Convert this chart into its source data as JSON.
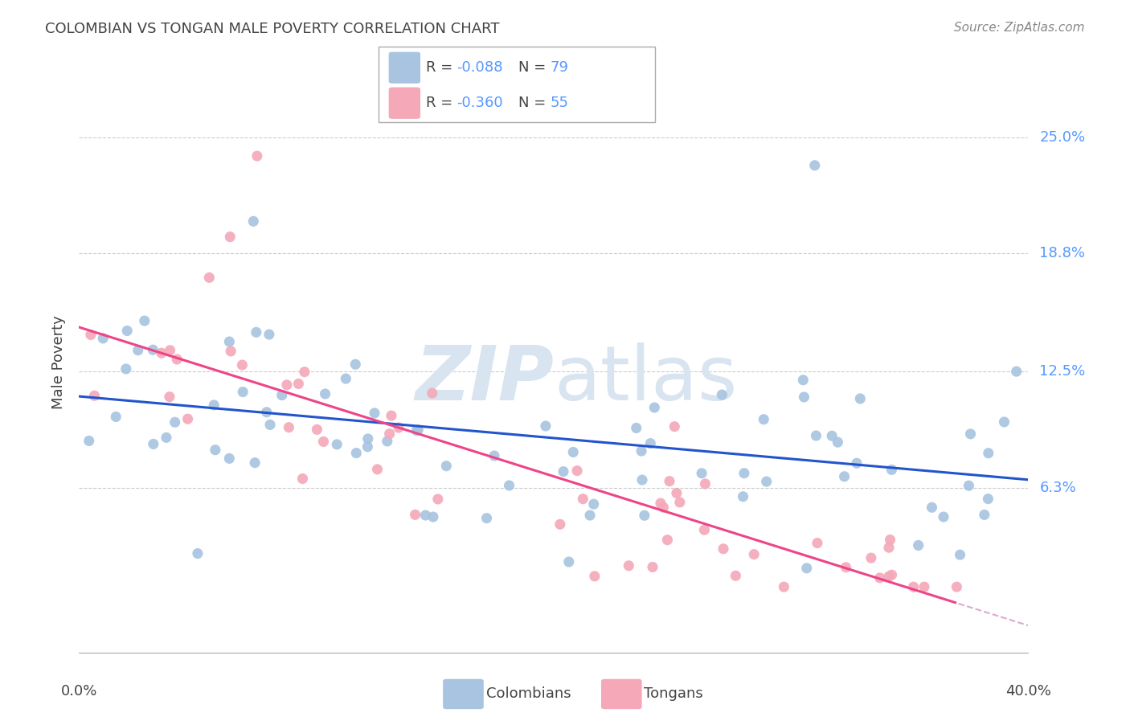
{
  "title": "COLOMBIAN VS TONGAN MALE POVERTY CORRELATION CHART",
  "source": "Source: ZipAtlas.com",
  "ylabel": "Male Poverty",
  "ytick_values": [
    0.063,
    0.125,
    0.188,
    0.25
  ],
  "ytick_labels": [
    "6.3%",
    "12.5%",
    "18.8%",
    "25.0%"
  ],
  "xlim": [
    0.0,
    0.4
  ],
  "ylim": [
    -0.025,
    0.285
  ],
  "legend_r1": "R = ",
  "legend_r1_val": "-0.088",
  "legend_n1": "N = ",
  "legend_n1_val": "79",
  "legend_r2": "R = ",
  "legend_r2_val": "-0.360",
  "legend_n2": "N = ",
  "legend_n2_val": "55",
  "colombian_color": "#a8c4e0",
  "tongan_color": "#f4a8b8",
  "colombian_line_color": "#2255cc",
  "tongan_line_color": "#ee4488",
  "tongan_line_dashed_color": "#ddaacc",
  "watermark_color": "#d8e4f0",
  "label_color": "#5599ff",
  "text_color": "#444444",
  "grid_color": "#cccccc",
  "source_color": "#888888"
}
